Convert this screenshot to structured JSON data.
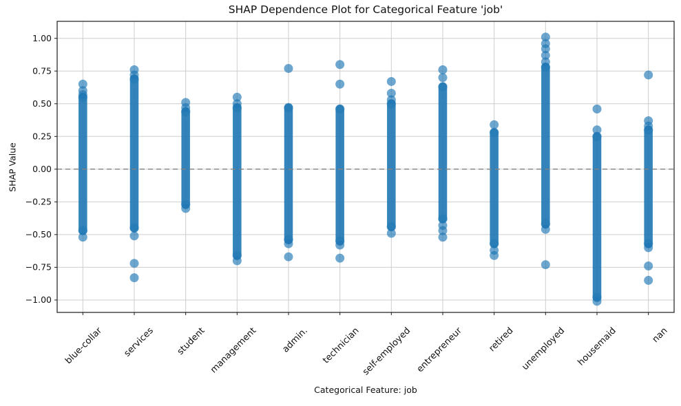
{
  "chart_data": {
    "type": "scatter",
    "title": "SHAP Dependence Plot for Categorical Feature 'job'",
    "xlabel": "Categorical Feature: job",
    "ylabel": "SHAP Value",
    "grid": true,
    "legend": false,
    "x_tick_rotation_deg": 45,
    "ylim": [
      -1.095,
      1.13
    ],
    "yticks": [
      1.0,
      0.75,
      0.5,
      0.25,
      0.0,
      -0.25,
      -0.5,
      -0.75,
      -1.0
    ],
    "ytick_labels": [
      "1.00",
      "0.75",
      "0.50",
      "0.25",
      "0.00",
      "−0.25",
      "−0.50",
      "−0.75",
      "−1.00"
    ],
    "zero_line": {
      "y": 0.0,
      "style": "dashed",
      "color": "#808080"
    },
    "marker_color": "#1f77b4",
    "marker_alpha": 0.65,
    "grid_color": "#cdcdcd",
    "categories": [
      "blue-collar",
      "services",
      "student",
      "management",
      "admin.",
      "technician",
      "self-employed",
      "entrepreneur",
      "retired",
      "unemployed",
      "housemaid",
      "nan"
    ],
    "series": [
      {
        "category": "blue-collar",
        "dense_range": [
          -0.47,
          0.55
        ],
        "outliers": [
          0.65,
          0.6,
          0.57,
          -0.52
        ]
      },
      {
        "category": "services",
        "dense_range": [
          -0.45,
          0.69
        ],
        "outliers": [
          0.76,
          0.72,
          -0.51,
          -0.72,
          -0.83
        ]
      },
      {
        "category": "student",
        "dense_range": [
          -0.27,
          0.44
        ],
        "outliers": [
          0.51,
          0.47,
          -0.3
        ]
      },
      {
        "category": "management",
        "dense_range": [
          -0.66,
          0.47
        ],
        "outliers": [
          0.55,
          0.5,
          -0.7
        ]
      },
      {
        "category": "admin.",
        "dense_range": [
          -0.54,
          0.47
        ],
        "outliers": [
          0.77,
          -0.57,
          -0.67
        ]
      },
      {
        "category": "technician",
        "dense_range": [
          -0.55,
          0.46
        ],
        "outliers": [
          0.8,
          0.65,
          -0.58,
          -0.68
        ]
      },
      {
        "category": "self-employed",
        "dense_range": [
          -0.44,
          0.5
        ],
        "outliers": [
          0.67,
          0.58,
          0.53,
          -0.49
        ]
      },
      {
        "category": "entrepreneur",
        "dense_range": [
          -0.38,
          0.63
        ],
        "outliers": [
          0.76,
          0.7,
          -0.43,
          -0.47,
          -0.52
        ]
      },
      {
        "category": "retired",
        "dense_range": [
          -0.57,
          0.28
        ],
        "outliers": [
          0.34,
          -0.62,
          -0.66
        ]
      },
      {
        "category": "unemployed",
        "dense_range": [
          -0.42,
          0.78
        ],
        "outliers": [
          1.01,
          0.96,
          0.92,
          0.87,
          0.82,
          -0.46,
          -0.73
        ]
      },
      {
        "category": "housemaid",
        "dense_range": [
          -0.98,
          0.25
        ],
        "outliers": [
          0.46,
          0.3,
          -1.01
        ]
      },
      {
        "category": "nan",
        "dense_range": [
          -0.57,
          0.3
        ],
        "outliers": [
          0.72,
          0.37,
          0.33,
          -0.6,
          -0.74,
          -0.85
        ]
      }
    ]
  }
}
